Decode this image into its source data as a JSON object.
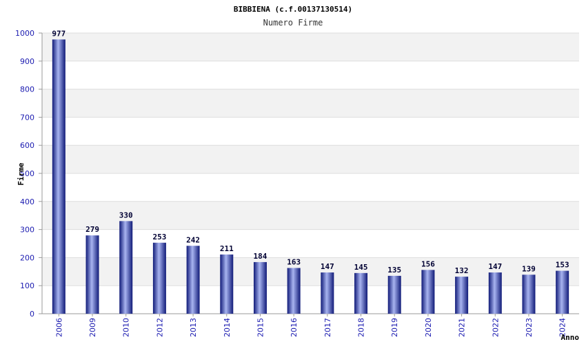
{
  "chart_data": {
    "type": "bar",
    "title": "BIBBIENA (c.f.00137130514)",
    "subtitle": "Numero Firme",
    "xlabel": "Anno",
    "ylabel": "Firme",
    "ylim": [
      0,
      1000
    ],
    "yticks": [
      0,
      100,
      200,
      300,
      400,
      500,
      600,
      700,
      800,
      900,
      1000
    ],
    "categories": [
      "2006",
      "2009",
      "2010",
      "2012",
      "2013",
      "2014",
      "2015",
      "2016",
      "2017",
      "2018",
      "2019",
      "2020",
      "2021",
      "2022",
      "2023",
      "2024"
    ],
    "values": [
      977,
      279,
      330,
      253,
      242,
      211,
      184,
      163,
      147,
      145,
      135,
      156,
      132,
      147,
      139,
      153
    ],
    "data_labels": true,
    "grid": "horizontal alternating bands",
    "colors": {
      "bar_dark": "#101a78",
      "bar_light": "#a8b4f0",
      "band": "#f2f2f2",
      "grid": "#dddddd",
      "axis": "#999999"
    }
  }
}
